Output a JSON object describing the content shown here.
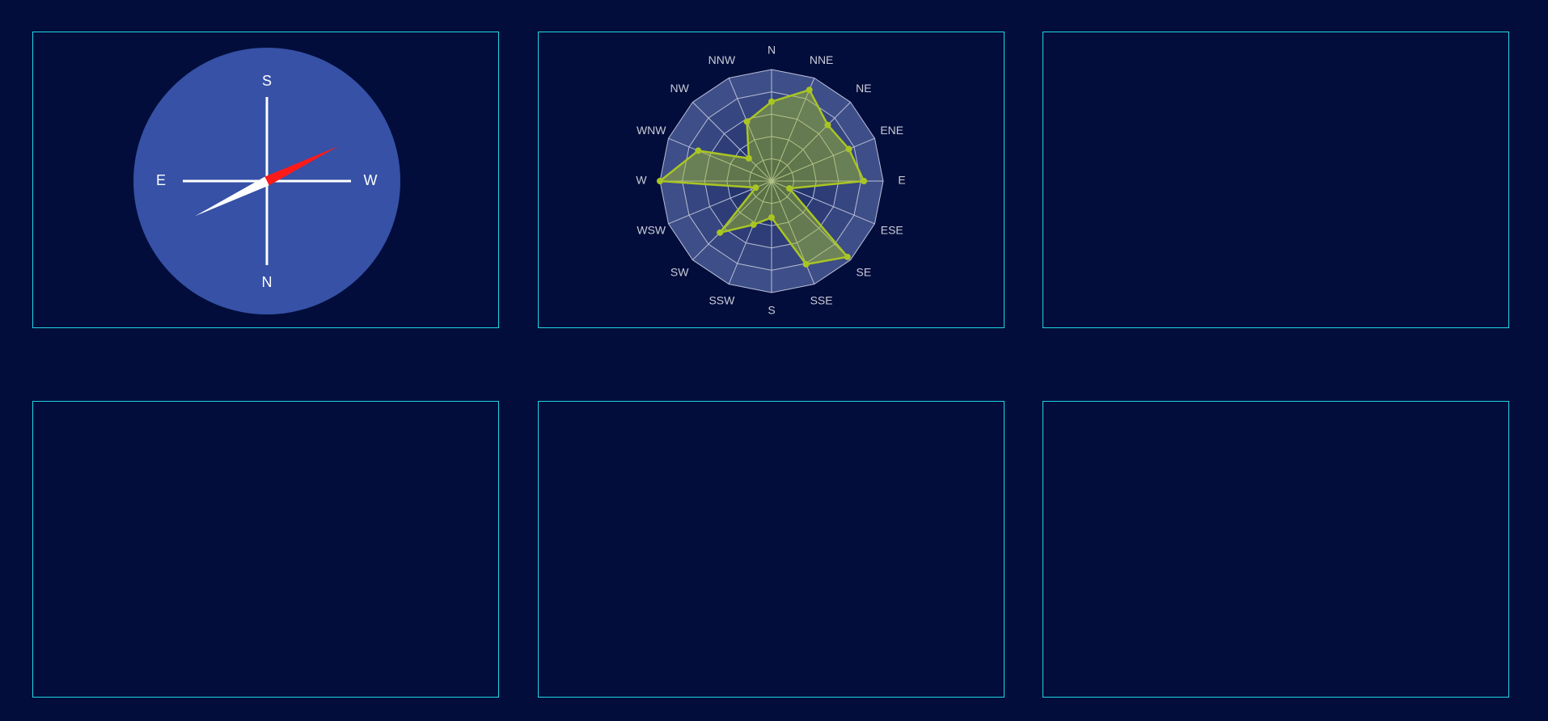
{
  "colors": {
    "background": "#020d3b",
    "panel_border": "#1fd7e6",
    "compass_face": "#3651a6",
    "needle_red": "#ff1a1a",
    "needle_white": "#ffffff",
    "radar_fill_outer": "#3c4a80",
    "radar_series": "#a9c523"
  },
  "compass": {
    "labels": {
      "top": "S",
      "bottom": "N",
      "left": "E",
      "right": "W"
    },
    "needle_angle_deg": 64
  },
  "chart_data": {
    "type": "radar",
    "categories": [
      "N",
      "NNE",
      "NE",
      "ENE",
      "E",
      "ESE",
      "SE",
      "SSE",
      "S",
      "SSW",
      "SW",
      "WSW",
      "W",
      "WNW",
      "NW",
      "NNW"
    ],
    "series": [
      {
        "values": [
          3.7,
          4.6,
          3.7,
          3.9,
          4.3,
          0.9,
          5.0,
          4.2,
          1.7,
          2.2,
          3.4,
          0.8,
          5.2,
          3.7,
          1.5,
          3.0
        ]
      }
    ],
    "max": 5.2,
    "rings": 5
  }
}
